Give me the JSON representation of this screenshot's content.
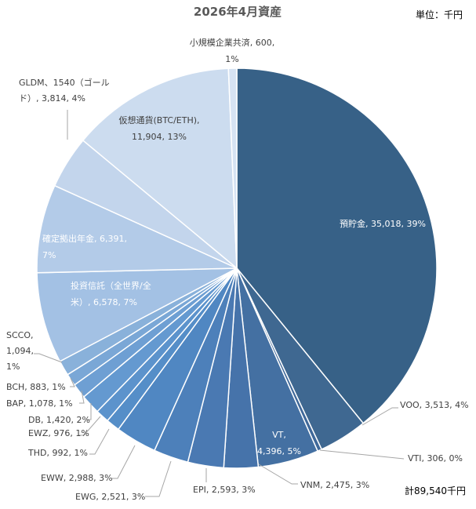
{
  "chart_data": {
    "type": "pie",
    "title": "2026年4月資産",
    "unit_note": "単位：千円",
    "total_note": "計89,540千円",
    "slices": [
      {
        "name": "預貯金",
        "value": 35018,
        "percent": 39,
        "color": "#376187",
        "label_lines": [
          "預貯金, 35,018, 39%"
        ]
      },
      {
        "name": "VOO",
        "value": 3513,
        "percent": 4,
        "color": "#3f6891",
        "label_lines": [
          "VOO, 3,513, 4%"
        ]
      },
      {
        "name": "VTI",
        "value": 306,
        "percent": 0,
        "color": "#40699a",
        "label_lines": [
          "VTI, 306, 0%"
        ]
      },
      {
        "name": "VT",
        "value": 4396,
        "percent": 5,
        "color": "#4470a2",
        "label_lines": [
          "VT,",
          "4,396, 5%"
        ]
      },
      {
        "name": "VNM",
        "value": 2475,
        "percent": 3,
        "color": "#4673aa",
        "label_lines": [
          "VNM, 2,475, 3%"
        ]
      },
      {
        "name": "EPI",
        "value": 2593,
        "percent": 3,
        "color": "#4a79b2",
        "label_lines": [
          "EPI, 2,593, 3%"
        ]
      },
      {
        "name": "EWG",
        "value": 2521,
        "percent": 3,
        "color": "#4d80ba",
        "label_lines": [
          "EWG, 2,521, 3%"
        ]
      },
      {
        "name": "EWW",
        "value": 2988,
        "percent": 3,
        "color": "#5087c2",
        "label_lines": [
          "EWW, 2,988, 3%"
        ]
      },
      {
        "name": "THD",
        "value": 992,
        "percent": 1,
        "color": "#558ec8",
        "label_lines": [
          "THD, 992, 1%"
        ]
      },
      {
        "name": "EWZ",
        "value": 976,
        "percent": 1,
        "color": "#5c93cc",
        "label_lines": [
          "EWZ, 976, 1%"
        ]
      },
      {
        "name": "DB",
        "value": 1420,
        "percent": 2,
        "color": "#6499d0",
        "label_lines": [
          "DB, 1,420, 2%"
        ]
      },
      {
        "name": "BAP",
        "value": 1078,
        "percent": 1,
        "color": "#6e9fd3",
        "label_lines": [
          "BAP, 1,078, 1%"
        ]
      },
      {
        "name": "BCH",
        "value": 883,
        "percent": 1,
        "color": "#7aa7d6",
        "label_lines": [
          "BCH, 883, 1%"
        ]
      },
      {
        "name": "SCCO",
        "value": 1094,
        "percent": 1,
        "color": "#89b1da",
        "label_lines": [
          "SCCO,",
          "1,094,",
          "1%"
        ]
      },
      {
        "name": "投資信託（全世界/全米）",
        "value": 6578,
        "percent": 7,
        "color": "#a3c1e4",
        "label_lines": [
          "投資信託（全世界/全",
          "米）, 6,578, 7%"
        ]
      },
      {
        "name": "確定拠出年金",
        "value": 6391,
        "percent": 7,
        "color": "#b3cbe8",
        "label_lines": [
          "確定拠出年金, 6,391,",
          "7%"
        ]
      },
      {
        "name": "GLDM、1540（ゴールド）",
        "value": 3814,
        "percent": 4,
        "color": "#c3d5ec",
        "label_lines": [
          "GLDM、1540（ゴール",
          "ド）, 3,814, 4%"
        ]
      },
      {
        "name": "仮想通貨(BTC/ETH)",
        "value": 11904,
        "percent": 13,
        "color": "#ccdcef",
        "label_lines": [
          "仮想通貨(BTC/ETH),",
          "11,904, 13%"
        ]
      },
      {
        "name": "小規模企業共済",
        "value": 600,
        "percent": 1,
        "color": "#d6e3f3",
        "label_lines": [
          "小規模企業共済, 600,",
          "1%"
        ]
      }
    ]
  }
}
